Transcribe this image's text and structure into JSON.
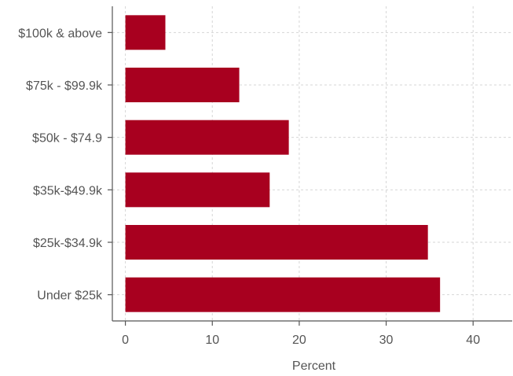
{
  "chart_data": {
    "type": "bar",
    "orientation": "horizontal",
    "title": "",
    "xlabel": "Percent",
    "ylabel": "",
    "categories": [
      "$100k & above",
      "$75k - $99.9k",
      "$50k - $74.9",
      "$35k-$49.9k",
      "$25k-$34.9k",
      "Under $25k"
    ],
    "values": [
      4.6,
      13.1,
      18.8,
      16.6,
      34.8,
      36.2
    ],
    "xlim": [
      -1.5,
      44.5
    ],
    "xticks": [
      0,
      10,
      20,
      30,
      40
    ],
    "xtick_labels": [
      "0",
      "10",
      "20",
      "30",
      "40"
    ],
    "grid": true,
    "bar_color": "#a8001f",
    "legend": "none"
  }
}
